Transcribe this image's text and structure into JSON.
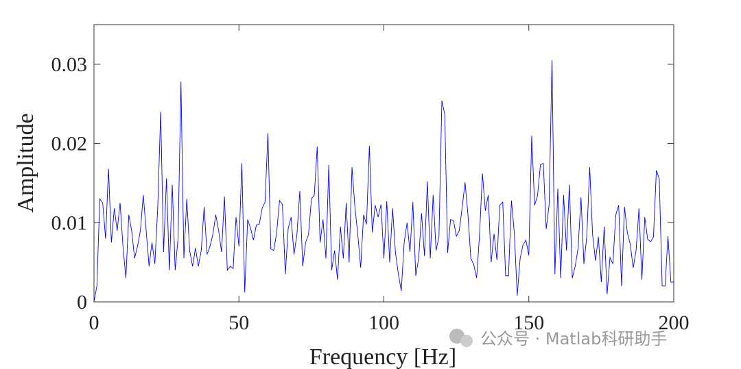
{
  "chart_data": {
    "type": "line",
    "xlabel": "Frequency [Hz]",
    "ylabel": "Amplitude",
    "annotation": "公众号 · Matlab科研助手",
    "xlim": [
      0,
      200
    ],
    "xticks": [
      0,
      50,
      100,
      150,
      200
    ],
    "ylim": [
      0,
      0.035
    ],
    "yticks": [
      0,
      0.01,
      0.02,
      0.03
    ],
    "grid": false,
    "x": [
      0,
      1,
      2,
      3,
      4,
      5,
      6,
      7,
      8,
      9,
      10,
      11,
      12,
      13,
      14,
      15,
      16,
      17,
      18,
      19,
      20,
      21,
      22,
      23,
      24,
      25,
      26,
      27,
      28,
      29,
      30,
      31,
      32,
      33,
      34,
      35,
      36,
      37,
      38,
      39,
      40,
      41,
      42,
      43,
      44,
      45,
      46,
      47,
      48,
      49,
      50,
      51,
      52,
      53,
      54,
      55,
      56,
      57,
      58,
      59,
      60,
      61,
      62,
      63,
      64,
      65,
      66,
      67,
      68,
      69,
      70,
      71,
      72,
      73,
      74,
      75,
      76,
      77,
      78,
      79,
      80,
      81,
      82,
      83,
      84,
      85,
      86,
      87,
      88,
      89,
      90,
      91,
      92,
      93,
      94,
      95,
      96,
      97,
      98,
      99,
      100,
      101,
      102,
      103,
      104,
      105,
      106,
      107,
      108,
      109,
      110,
      111,
      112,
      113,
      114,
      115,
      116,
      117,
      118,
      119,
      120,
      121,
      122,
      123,
      124,
      125,
      126,
      127,
      128,
      129,
      130,
      131,
      132,
      133,
      134,
      135,
      136,
      137,
      138,
      139,
      140,
      141,
      142,
      143,
      144,
      145,
      146,
      147,
      148,
      149,
      150,
      151,
      152,
      153,
      154,
      155,
      156,
      157,
      158,
      159,
      160,
      161,
      162,
      163,
      164,
      165,
      166,
      167,
      168,
      169,
      170,
      171,
      172,
      173,
      174,
      175,
      176,
      177,
      178,
      179,
      180,
      181,
      182,
      183,
      184,
      185,
      186,
      187,
      188,
      189,
      190,
      191,
      192,
      193,
      194,
      195,
      196,
      197,
      198,
      199,
      200
    ],
    "series": [
      {
        "color": "#0000ff",
        "values": [
          0.0,
          0.002,
          0.013,
          0.0125,
          0.008,
          0.0168,
          0.0075,
          0.0118,
          0.009,
          0.0125,
          0.007,
          0.003,
          0.011,
          0.009,
          0.0055,
          0.007,
          0.009,
          0.0135,
          0.009,
          0.0045,
          0.0075,
          0.0048,
          0.012,
          0.024,
          0.0063,
          0.0156,
          0.004,
          0.0148,
          0.004,
          0.008,
          0.0278,
          0.0055,
          0.013,
          0.0065,
          0.0045,
          0.0068,
          0.0045,
          0.0065,
          0.012,
          0.006,
          0.007,
          0.0085,
          0.011,
          0.009,
          0.0063,
          0.0133,
          0.004,
          0.0045,
          0.0042,
          0.0107,
          0.007,
          0.0175,
          0.0012,
          0.0104,
          0.0093,
          0.0078,
          0.0097,
          0.0098,
          0.0118,
          0.0126,
          0.0213,
          0.0067,
          0.0065,
          0.0087,
          0.0128,
          0.0123,
          0.0035,
          0.0093,
          0.0107,
          0.006,
          0.0085,
          0.014,
          0.0045,
          0.0075,
          0.0085,
          0.013,
          0.0135,
          0.0196,
          0.0075,
          0.0104,
          0.0055,
          0.0173,
          0.004,
          0.0065,
          0.0028,
          0.0095,
          0.0055,
          0.0125,
          0.005,
          0.017,
          0.012,
          0.0085,
          0.0043,
          0.011,
          0.0098,
          0.0197,
          0.0088,
          0.0122,
          0.0107,
          0.0123,
          0.0055,
          0.0127,
          0.005,
          0.0118,
          0.0062,
          0.0035,
          0.0014,
          0.0075,
          0.01,
          0.0063,
          0.0126,
          0.0033,
          0.0055,
          0.0112,
          0.0058,
          0.0152,
          0.0055,
          0.0135,
          0.0065,
          0.0082,
          0.0254,
          0.0237,
          0.0062,
          0.0104,
          0.0103,
          0.0083,
          0.009,
          0.0119,
          0.0151,
          0.011,
          0.0055,
          0.0047,
          0.003,
          0.0085,
          0.0162,
          0.0115,
          0.0135,
          0.005,
          0.0086,
          0.0053,
          0.0122,
          0.0126,
          0.0033,
          0.0033,
          0.0128,
          0.0087,
          0.0008,
          0.0055,
          0.0072,
          0.0078,
          0.0059,
          0.021,
          0.0122,
          0.0134,
          0.0173,
          0.0175,
          0.0092,
          0.0123,
          0.0305,
          0.0035,
          0.0143,
          0.003,
          0.0135,
          0.0065,
          0.0148,
          0.003,
          0.0045,
          0.0068,
          0.0132,
          0.0048,
          0.0083,
          0.017,
          0.0085,
          0.0052,
          0.0082,
          0.0025,
          0.0095,
          0.001,
          0.0056,
          0.0048,
          0.011,
          0.0122,
          0.002,
          0.012,
          0.0087,
          0.0073,
          0.0043,
          0.0065,
          0.0118,
          0.0028,
          0.0107,
          0.0079,
          0.0076,
          0.0082,
          0.0166,
          0.0155,
          0.002,
          0.002,
          0.0083,
          0.0025,
          0.0025
        ]
      }
    ]
  }
}
